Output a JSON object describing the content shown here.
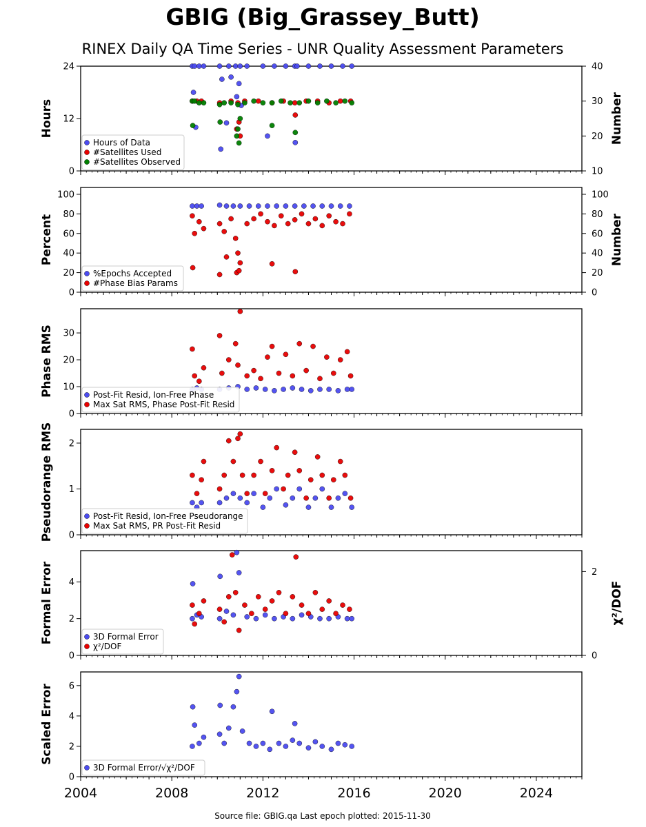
{
  "title": "GBIG (Big_Grassey_Butt)",
  "subtitle": "RINEX Daily QA Time Series - UNR Quality Assessment Parameters",
  "source_text": "Source file: GBIG.qa Last epoch plotted: 2015-11-30",
  "colors": {
    "blue": "#4b4bf0",
    "red": "#e80000",
    "green": "#008000"
  },
  "chart_data": [
    {
      "type": "scatter",
      "panel": "hours",
      "ylabel": "Hours",
      "ylabel_right": "Number",
      "ylim": [
        0,
        24
      ],
      "ylim_right": [
        10,
        40
      ],
      "yticks": [
        "0",
        "12",
        "24"
      ],
      "yticks_right": [
        "10",
        "20",
        "30",
        "40"
      ],
      "grid": false,
      "legend": "lower-left",
      "series": [
        {
          "name": "Hours of Data",
          "color": "#4b4bf0",
          "axis": "left",
          "x": [
            2008.9,
            2009.0,
            2009.2,
            2009.4,
            2010.1,
            2010.5,
            2010.8,
            2011.0,
            2011.3,
            2012.0,
            2012.5,
            2013.0,
            2013.4,
            2013.5,
            2014.0,
            2014.5,
            2015.0,
            2015.5,
            2015.9,
            2008.95,
            2009.05,
            2010.2,
            2010.4,
            2010.6,
            2010.85,
            2010.95,
            2011.05,
            2012.2,
            2013.42,
            2010.15
          ],
          "y": [
            24,
            24,
            24,
            24,
            24,
            24,
            24,
            24,
            24,
            24,
            24,
            24,
            24,
            24,
            24,
            24,
            24,
            24,
            24,
            18,
            10,
            21,
            11,
            21.5,
            17,
            20,
            15,
            8,
            6.5,
            5
          ]
        },
        {
          "name": "#Satellites Used",
          "color": "#e80000",
          "axis": "right",
          "x": [
            2008.9,
            2009.1,
            2009.3,
            2010.1,
            2010.6,
            2010.9,
            2011.2,
            2011.8,
            2012.4,
            2012.9,
            2013.4,
            2013.9,
            2014.4,
            2014.9,
            2015.4,
            2015.85,
            2010.85,
            2010.95,
            2011.0,
            2013.42
          ],
          "y": [
            30,
            30,
            30,
            29.5,
            30,
            29.5,
            30,
            30,
            29.5,
            30,
            29.5,
            30,
            30,
            29.5,
            30,
            30,
            22,
            24,
            20,
            26
          ]
        },
        {
          "name": "#Satellites Observed",
          "color": "#008000",
          "axis": "right",
          "x": [
            2008.9,
            2009.0,
            2009.2,
            2009.4,
            2010.1,
            2010.3,
            2010.6,
            2010.9,
            2011.2,
            2011.6,
            2012.0,
            2012.4,
            2012.8,
            2013.2,
            2013.6,
            2014.0,
            2014.4,
            2014.8,
            2015.2,
            2015.6,
            2015.9,
            2008.92,
            2010.12,
            2010.85,
            2010.9,
            2010.95,
            2011.0,
            2012.4,
            2013.42
          ],
          "y": [
            30,
            30,
            29.5,
            29.5,
            29,
            29.5,
            29.5,
            29,
            29.5,
            30,
            29.5,
            29.5,
            30,
            29.5,
            29.5,
            30,
            29.5,
            30,
            29.5,
            30,
            29.5,
            23,
            24,
            20,
            22,
            18,
            25,
            23,
            21
          ]
        }
      ]
    },
    {
      "type": "scatter",
      "panel": "percent",
      "ylabel": "Percent",
      "ylabel_right": "Number",
      "ylim": [
        0,
        107
      ],
      "ylim_right": [
        0,
        107
      ],
      "yticks": [
        "0",
        "20",
        "40",
        "60",
        "80",
        "100"
      ],
      "yticks_right": [
        "0",
        "20",
        "40",
        "60",
        "80",
        "100"
      ],
      "grid": false,
      "legend": "lower-left",
      "series": [
        {
          "name": "%Epochs Accepted",
          "color": "#4b4bf0",
          "axis": "left",
          "x": [
            2008.9,
            2009.1,
            2009.3,
            2010.1,
            2010.4,
            2010.7,
            2011.0,
            2011.4,
            2011.8,
            2012.2,
            2012.6,
            2013.0,
            2013.4,
            2013.8,
            2014.2,
            2014.6,
            2015.0,
            2015.4,
            2015.8
          ],
          "y": [
            88,
            88,
            88,
            89,
            88,
            88,
            88,
            88,
            88,
            88,
            88,
            88,
            88,
            88,
            88,
            88,
            88,
            88,
            88
          ]
        },
        {
          "name": "#Phase Bias Params",
          "color": "#e80000",
          "axis": "right",
          "x": [
            2008.9,
            2009.0,
            2009.2,
            2009.4,
            2010.1,
            2010.3,
            2010.6,
            2010.8,
            2010.9,
            2011.0,
            2011.3,
            2011.6,
            2011.9,
            2012.2,
            2012.5,
            2012.8,
            2013.1,
            2013.4,
            2013.7,
            2014.0,
            2014.3,
            2014.6,
            2014.9,
            2015.2,
            2015.5,
            2015.8,
            2008.92,
            2010.1,
            2010.4,
            2010.85,
            2010.95,
            2012.4,
            2013.42
          ],
          "y": [
            78,
            60,
            72,
            65,
            70,
            62,
            75,
            55,
            40,
            30,
            70,
            75,
            80,
            72,
            68,
            78,
            70,
            74,
            80,
            70,
            75,
            68,
            78,
            72,
            70,
            80,
            25,
            18,
            36,
            20,
            22,
            29,
            21
          ]
        }
      ]
    },
    {
      "type": "scatter",
      "panel": "phase-rms",
      "ylabel": "Phase RMS",
      "ylim": [
        0,
        39
      ],
      "yticks": [
        "0",
        "10",
        "20",
        "30"
      ],
      "grid": false,
      "legend": "lower-left",
      "series": [
        {
          "name": "Post-Fit Resid, Ion-Free Phase",
          "color": "#4b4bf0",
          "x": [
            2008.9,
            2009.1,
            2009.3,
            2010.1,
            2010.5,
            2010.9,
            2011.3,
            2011.7,
            2012.1,
            2012.5,
            2012.9,
            2013.3,
            2013.7,
            2014.1,
            2014.5,
            2014.9,
            2015.3,
            2015.7,
            2015.9
          ],
          "y": [
            9,
            9.5,
            9,
            9,
            9.5,
            10,
            9,
            9.5,
            9,
            8.5,
            9,
            9.5,
            9,
            8.5,
            9,
            9,
            8.5,
            9,
            9
          ]
        },
        {
          "name": "Max Sat RMS, Phase Post-Fit Resid",
          "color": "#e80000",
          "x": [
            2008.9,
            2009.0,
            2009.2,
            2009.4,
            2010.1,
            2010.2,
            2010.5,
            2010.8,
            2010.9,
            2011.0,
            2011.3,
            2011.6,
            2011.9,
            2012.2,
            2012.4,
            2012.7,
            2013.0,
            2013.3,
            2013.6,
            2013.9,
            2014.2,
            2014.5,
            2014.8,
            2015.1,
            2015.4,
            2015.7,
            2015.85
          ],
          "y": [
            24,
            14,
            12,
            17,
            29,
            15,
            20,
            26,
            18,
            38,
            14,
            16,
            13,
            21,
            25,
            15,
            22,
            14,
            26,
            16,
            25,
            13,
            21,
            15,
            20,
            23,
            14
          ]
        }
      ]
    },
    {
      "type": "scatter",
      "panel": "pseudorange-rms",
      "ylabel": "Pseudorange RMS",
      "ylim": [
        0,
        2.3
      ],
      "yticks": [
        "0",
        "1",
        "2"
      ],
      "grid": false,
      "legend": "lower-left",
      "series": [
        {
          "name": "Post-Fit Resid, Ion-Free Pseudorange",
          "color": "#4b4bf0",
          "x": [
            2008.9,
            2009.1,
            2009.3,
            2010.1,
            2010.4,
            2010.7,
            2011.0,
            2011.3,
            2011.6,
            2012.0,
            2012.3,
            2012.6,
            2013.0,
            2013.3,
            2013.6,
            2014.0,
            2014.3,
            2014.6,
            2015.0,
            2015.3,
            2015.6,
            2015.9
          ],
          "y": [
            0.7,
            0.6,
            0.7,
            0.7,
            0.8,
            0.9,
            0.8,
            0.7,
            0.9,
            0.6,
            0.8,
            1.0,
            0.65,
            0.8,
            1.0,
            0.6,
            0.8,
            1.0,
            0.6,
            0.8,
            0.9,
            0.6
          ]
        },
        {
          "name": "Max Sat RMS, PR Post-Fit Resid",
          "color": "#e80000",
          "x": [
            2008.9,
            2009.1,
            2009.3,
            2009.4,
            2010.1,
            2010.3,
            2010.5,
            2010.7,
            2010.9,
            2011.0,
            2011.1,
            2011.3,
            2011.6,
            2011.9,
            2012.1,
            2012.4,
            2012.6,
            2012.9,
            2013.1,
            2013.4,
            2013.6,
            2013.9,
            2014.1,
            2014.4,
            2014.6,
            2014.9,
            2015.1,
            2015.4,
            2015.6,
            2015.85
          ],
          "y": [
            1.3,
            0.9,
            1.2,
            1.6,
            1.0,
            1.3,
            2.05,
            1.6,
            2.1,
            2.2,
            1.3,
            0.9,
            1.3,
            1.6,
            0.9,
            1.4,
            1.9,
            1.0,
            1.3,
            1.8,
            1.4,
            0.8,
            1.2,
            1.7,
            1.3,
            0.8,
            1.2,
            1.6,
            1.3,
            0.8
          ]
        }
      ]
    },
    {
      "type": "scatter",
      "panel": "formal-error",
      "ylabel": "Formal Error",
      "ylabel_right": "χ²/DOF",
      "ylim": [
        0,
        5.7
      ],
      "ylim_right": [
        0,
        2.5
      ],
      "yticks": [
        "0",
        "2",
        "4"
      ],
      "yticks_right": [
        "0",
        "2"
      ],
      "grid": false,
      "legend": "lower-left",
      "series": [
        {
          "name": "3D Formal Error",
          "color": "#4b4bf0",
          "axis": "left",
          "x": [
            2008.9,
            2009.1,
            2009.3,
            2010.1,
            2010.4,
            2010.7,
            2010.85,
            2010.95,
            2011.3,
            2011.7,
            2012.1,
            2012.5,
            2012.9,
            2013.3,
            2013.7,
            2014.1,
            2014.5,
            2014.9,
            2015.3,
            2015.7,
            2015.9,
            2008.92,
            2010.12
          ],
          "y": [
            2.0,
            2.2,
            2.1,
            2.0,
            2.4,
            2.2,
            5.6,
            4.5,
            2.1,
            2.0,
            2.2,
            2.0,
            2.1,
            2.0,
            2.2,
            2.1,
            2.0,
            2.0,
            2.1,
            2.0,
            2.0,
            3.9,
            4.3
          ]
        },
        {
          "name": "χ²/DOF",
          "color": "#e80000",
          "axis": "right",
          "x": [
            2008.9,
            2009.0,
            2009.2,
            2009.4,
            2010.1,
            2010.3,
            2010.5,
            2010.65,
            2010.8,
            2010.95,
            2011.2,
            2011.5,
            2011.8,
            2012.1,
            2012.4,
            2012.7,
            2013.0,
            2013.3,
            2013.45,
            2013.7,
            2014.0,
            2014.3,
            2014.6,
            2014.9,
            2015.2,
            2015.5,
            2015.8
          ],
          "y": [
            1.2,
            0.75,
            1.0,
            1.3,
            1.1,
            0.8,
            1.4,
            2.4,
            1.5,
            0.6,
            1.2,
            1.0,
            1.4,
            1.1,
            1.3,
            1.5,
            1.0,
            1.4,
            2.35,
            1.2,
            1.0,
            1.5,
            1.1,
            1.3,
            1.0,
            1.2,
            1.1
          ]
        }
      ]
    },
    {
      "type": "scatter",
      "panel": "scaled-error",
      "ylabel": "Scaled Error",
      "ylim": [
        0,
        6.9
      ],
      "yticks": [
        "0",
        "2",
        "4",
        "6"
      ],
      "grid": false,
      "legend": "lower-left",
      "series": [
        {
          "name": "3D Formal Error/√χ²/DOF",
          "color": "#4b4bf0",
          "x": [
            2008.9,
            2009.0,
            2009.2,
            2009.4,
            2010.1,
            2010.3,
            2010.5,
            2010.7,
            2010.85,
            2010.95,
            2011.1,
            2011.4,
            2011.7,
            2012.0,
            2012.3,
            2012.4,
            2012.7,
            2013.0,
            2013.3,
            2013.4,
            2013.6,
            2014.0,
            2014.3,
            2014.6,
            2015.0,
            2015.3,
            2015.6,
            2015.9,
            2008.92,
            2010.12
          ],
          "y": [
            2.0,
            3.4,
            2.2,
            2.6,
            2.8,
            2.2,
            3.2,
            4.6,
            5.6,
            6.6,
            3.0,
            2.2,
            2.0,
            2.2,
            1.8,
            4.3,
            2.2,
            2.0,
            2.4,
            3.5,
            2.2,
            1.9,
            2.3,
            2.0,
            1.8,
            2.2,
            2.1,
            2.0,
            4.6,
            4.7
          ]
        }
      ]
    }
  ],
  "x_axis": {
    "xlim": [
      2004,
      2026
    ],
    "ticks": [
      "2004",
      "2008",
      "2012",
      "2016",
      "2020",
      "2024"
    ]
  },
  "legend_labels": {
    "phase_sq": "χ²/DOF",
    "scaled_prefix": "3D Formal Error/",
    "scaled_sqrt": "√",
    "scaled_inner": "χ²/DOF"
  }
}
